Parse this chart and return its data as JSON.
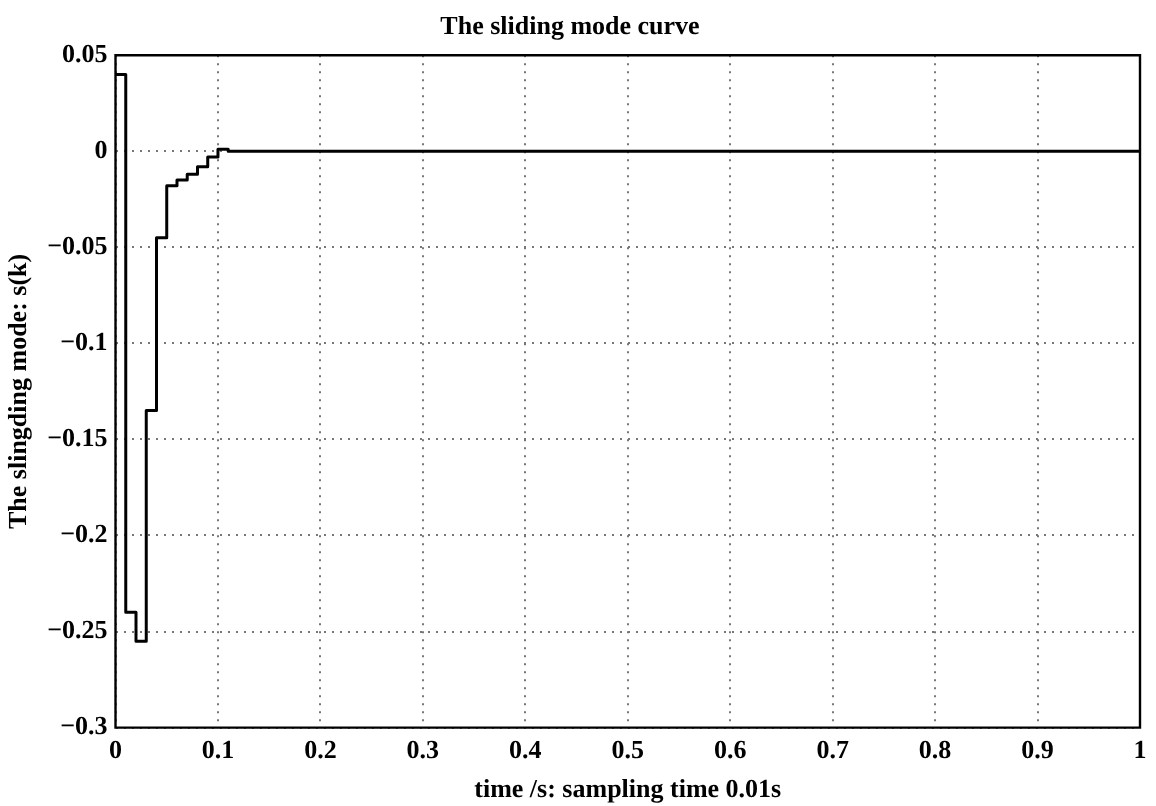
{
  "chart_data": {
    "type": "step",
    "title": "The sliding mode curve",
    "xlabel": "time /s: sampling time 0.01s",
    "ylabel": "The slingding mode: s(k)",
    "x": [
      0,
      0.01,
      0.02,
      0.03,
      0.04,
      0.05,
      0.06,
      0.07,
      0.08,
      0.09,
      0.1,
      0.11,
      1
    ],
    "series": [
      {
        "color": "#000000",
        "values": [
          0.04,
          -0.24,
          -0.255,
          -0.135,
          -0.045,
          -0.018,
          -0.015,
          -0.012,
          -0.008,
          -0.003,
          0.001,
          0,
          0
        ]
      }
    ],
    "xlim": [
      0,
      1
    ],
    "xticks": [
      0,
      0.1,
      0.2,
      0.3,
      0.4,
      0.5,
      0.6,
      0.7,
      0.8,
      0.9,
      1
    ],
    "ylim": [
      -0.3,
      0.05
    ],
    "yticks": [
      -0.3,
      -0.25,
      -0.2,
      -0.15,
      -0.1,
      -0.05,
      0,
      0.05
    ],
    "grid": true,
    "legend": false,
    "marker": "none",
    "line_style": "solid"
  }
}
